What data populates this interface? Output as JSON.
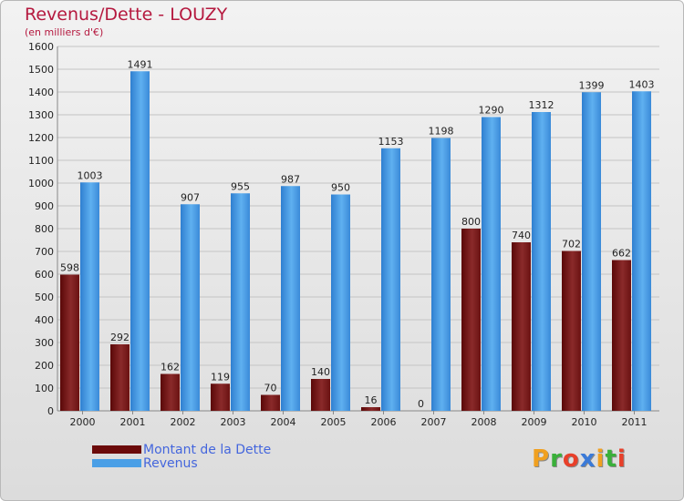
{
  "header": {
    "title": "Revenus/Dette - LOUZY",
    "subtitle": "(en milliers d'€)"
  },
  "legend": {
    "items": [
      {
        "label": "Montant de la Dette",
        "color": "#6b0a0a"
      },
      {
        "label": "Revenus",
        "color": "#4a9fe6"
      }
    ]
  },
  "logo": {
    "text": "Proxiti",
    "letters": [
      "P",
      "r",
      "o",
      "x",
      "i",
      "t",
      "i"
    ],
    "colors": [
      "#f0a020",
      "#3ab03a",
      "#e8402a",
      "#3a7ad8",
      "#f0a020",
      "#3ab03a",
      "#e8402a"
    ]
  },
  "chart_data": {
    "type": "bar",
    "categories": [
      "2000",
      "2001",
      "2002",
      "2003",
      "2004",
      "2005",
      "2006",
      "2007",
      "2008",
      "2009",
      "2010",
      "2011"
    ],
    "series": [
      {
        "name": "Montant de la Dette",
        "color": "#7a1a1a",
        "values": [
          598,
          292,
          162,
          119,
          70,
          140,
          16,
          0,
          800,
          740,
          702,
          662
        ]
      },
      {
        "name": "Revenus",
        "color": "#4a9fe6",
        "values": [
          1003,
          1491,
          907,
          955,
          987,
          950,
          1153,
          1198,
          1290,
          1312,
          1399,
          1403
        ]
      }
    ],
    "ylim": [
      0,
      1600
    ],
    "yticks": [
      0,
      100,
      200,
      300,
      400,
      500,
      600,
      700,
      800,
      900,
      1000,
      1100,
      1200,
      1300,
      1400,
      1500,
      1600
    ],
    "grid": true,
    "legend_position": "bottom-left"
  }
}
